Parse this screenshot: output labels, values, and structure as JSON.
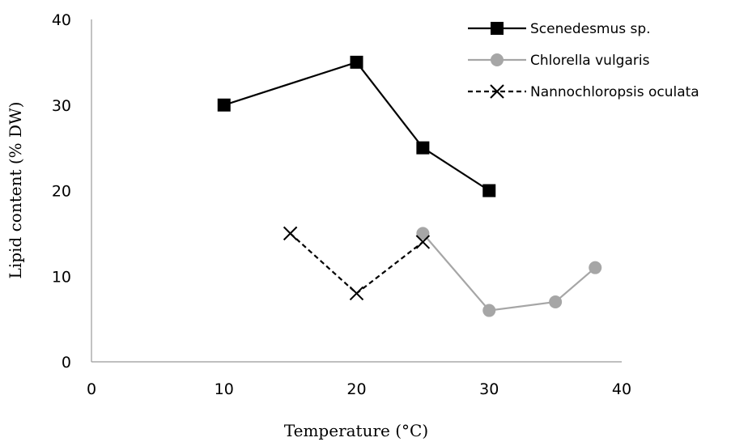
{
  "chart_data": {
    "type": "line",
    "title": "",
    "xlabel": "Temperature (°C)",
    "ylabel": "Lipid content (% DW)",
    "xlim": [
      0,
      40
    ],
    "ylim": [
      0,
      40
    ],
    "xticks": [
      0,
      10,
      20,
      30,
      40
    ],
    "yticks": [
      0,
      10,
      20,
      30,
      40
    ],
    "grid": false,
    "legend_position": "top-right",
    "series": [
      {
        "name": "Scenedesmus sp.",
        "color": "#000000",
        "marker": "square",
        "line_style": "solid",
        "x": [
          10,
          20,
          25,
          30
        ],
        "y": [
          30,
          35,
          25,
          20
        ]
      },
      {
        "name": "Chlorella vulgaris",
        "color": "#a6a6a6",
        "marker": "circle",
        "line_style": "solid",
        "x": [
          25,
          30,
          35,
          38
        ],
        "y": [
          15,
          6,
          7,
          11
        ]
      },
      {
        "name": "Nannochloropsis oculata",
        "color": "#000000",
        "marker": "x",
        "line_style": "dashed",
        "x": [
          15,
          20,
          25
        ],
        "y": [
          15,
          8,
          14
        ]
      }
    ]
  }
}
